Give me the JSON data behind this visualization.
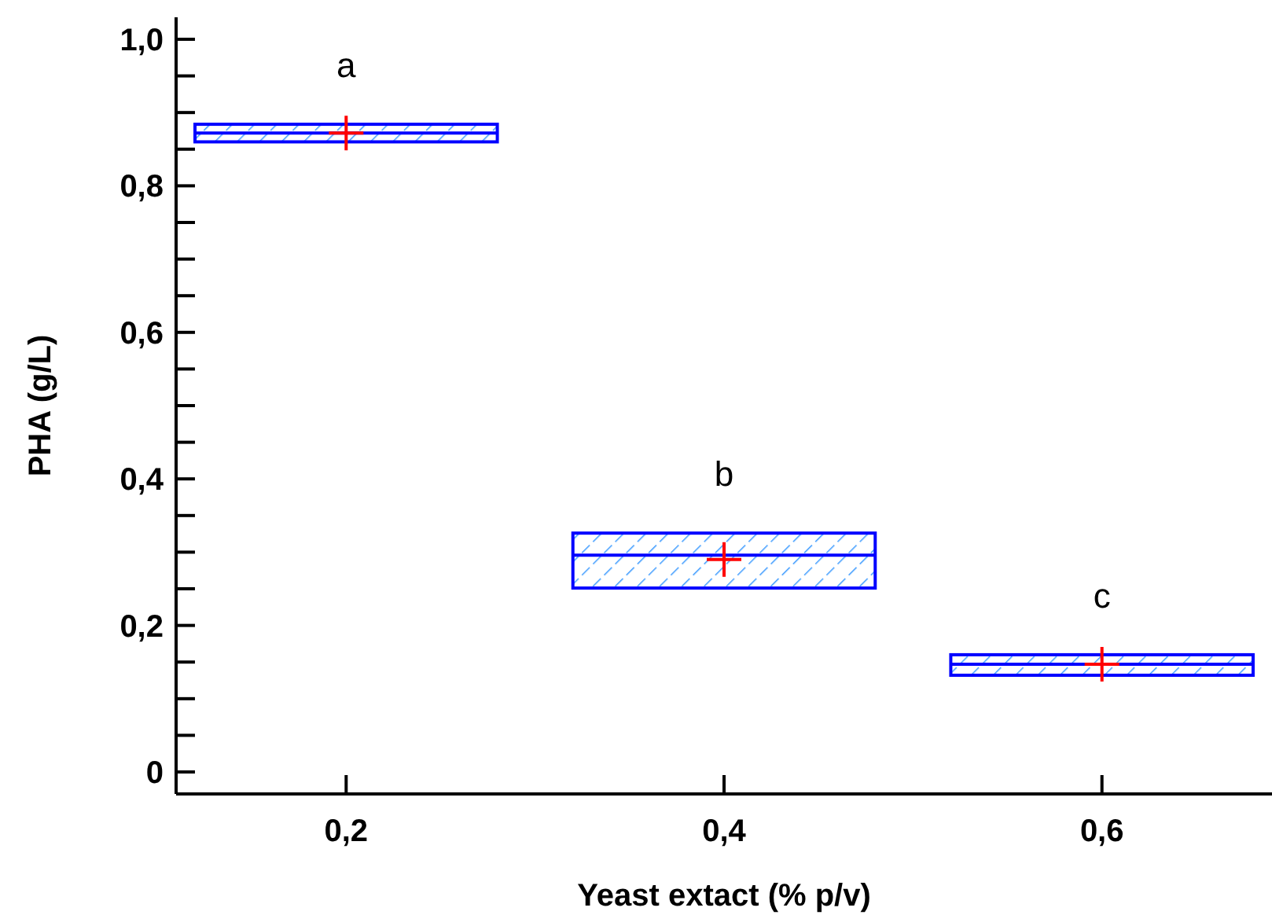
{
  "chart_data": {
    "type": "box",
    "xlabel": "Yeast extact (% p/v)",
    "ylabel": "PHA (g/L)",
    "categories": [
      "0,2",
      "0,4",
      "0,6"
    ],
    "series": [
      {
        "color": "#0000ff",
        "boxes": [
          {
            "low": 0.86,
            "q1": 0.86,
            "median": 0.872,
            "q3": 0.884,
            "high": 0.884
          },
          {
            "low": 0.251,
            "q1": 0.251,
            "median": 0.296,
            "q3": 0.326,
            "high": 0.326
          },
          {
            "low": 0.132,
            "q1": 0.132,
            "median": 0.147,
            "q3": 0.16,
            "high": 0.16
          }
        ]
      },
      {
        "type": "scatter",
        "color": "#ff0000",
        "marker": "cross",
        "x": [
          "0,2",
          "0,4",
          "0,6"
        ],
        "values": [
          0.872,
          0.29,
          0.147
        ]
      }
    ],
    "ylim": [
      -0.03,
      1.03
    ],
    "yticks": [
      {
        "value": 0,
        "label": "0"
      },
      {
        "value": 0.05,
        "label": null
      },
      {
        "value": 0.1,
        "label": null
      },
      {
        "value": 0.15,
        "label": null
      },
      {
        "value": 0.2,
        "label": "0,2"
      },
      {
        "value": 0.25,
        "label": null
      },
      {
        "value": 0.3,
        "label": null
      },
      {
        "value": 0.35,
        "label": null
      },
      {
        "value": 0.4,
        "label": "0,4"
      },
      {
        "value": 0.45,
        "label": null
      },
      {
        "value": 0.5,
        "label": null
      },
      {
        "value": 0.55,
        "label": null
      },
      {
        "value": 0.6,
        "label": "0,6"
      },
      {
        "value": 0.65,
        "label": null
      },
      {
        "value": 0.7,
        "label": null
      },
      {
        "value": 0.75,
        "label": null
      },
      {
        "value": 0.8,
        "label": "0,8"
      },
      {
        "value": 0.85,
        "label": null
      },
      {
        "value": 0.9,
        "label": null
      },
      {
        "value": 0.95,
        "label": null
      },
      {
        "value": 1.0,
        "label": "1,0"
      }
    ],
    "annotations": [
      "a",
      "b",
      "c"
    ]
  }
}
